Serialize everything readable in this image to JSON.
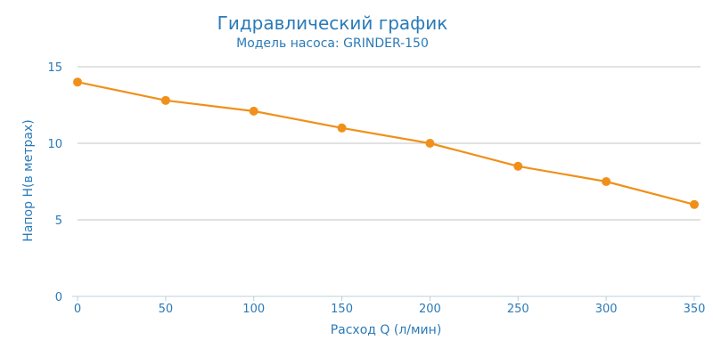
{
  "chart_data": {
    "type": "line",
    "title": "Гидравлический график",
    "subtitle": "Модель насоса: GRINDER-150",
    "xlabel": "Расход Q (л/мин)",
    "ylabel": "Напор H(в метрах)",
    "x": [
      0,
      50,
      100,
      150,
      200,
      250,
      300,
      350
    ],
    "x_ticks": [
      "0",
      "50",
      "100",
      "150",
      "200",
      "250",
      "300",
      "350"
    ],
    "y_ticks": [
      "0",
      "5",
      "10",
      "15"
    ],
    "xlim": [
      0,
      350
    ],
    "ylim": [
      0,
      15
    ],
    "grid": true,
    "series": [
      {
        "values": [
          14,
          12.8,
          12.1,
          11,
          10,
          8.5,
          7.5,
          6
        ],
        "color": "#f0901a"
      }
    ]
  }
}
